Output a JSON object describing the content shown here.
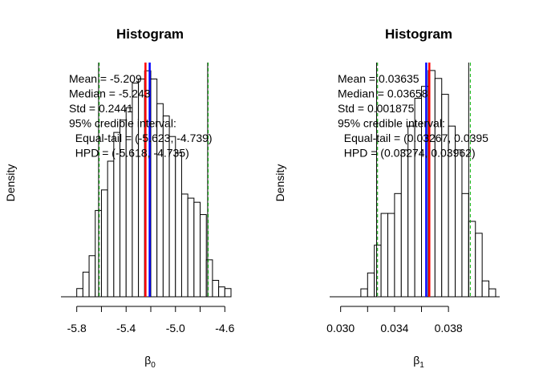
{
  "chart_data": [
    {
      "type": "bar",
      "title": "Histogram",
      "ylabel": "Density",
      "xlabel": "β",
      "xlabel_sub": "0",
      "xlim": [
        -5.85,
        -4.55
      ],
      "x_ticks": [
        -5.8,
        -5.6,
        -5.4,
        -5.2,
        -5.0,
        -4.8,
        -4.6
      ],
      "x_tick_labels": [
        "-5.8",
        "",
        "-5.4",
        "",
        "-5.0",
        "",
        "-4.6"
      ],
      "bin_width": 0.05,
      "bins_start": -5.8,
      "values": [
        0.1,
        0.3,
        0.5,
        1.05,
        1.3,
        1.65,
        2.0,
        2.15,
        2.3,
        2.6,
        2.65,
        2.75,
        2.65,
        2.35,
        2.2,
        1.95,
        1.75,
        1.25,
        1.2,
        1.15,
        1.0,
        0.45,
        0.2,
        0.12,
        0.1
      ],
      "ylim": [
        0,
        2.85
      ],
      "lines": {
        "mean": -5.209,
        "median": -5.243,
        "equal_tail": [
          -5.623,
          -4.739
        ],
        "hpd": [
          -5.618,
          -4.735
        ]
      },
      "legend_lines": [
        "Mean = -5.209",
        "Median = -5.243",
        "Std = 0.2441",
        "95% credible interval:",
        "  Equal-tail = (-5.623, -4.739)",
        "  HPD = (-5.618, -4.735)"
      ],
      "colors": {
        "mean": "#0000ff",
        "median": "#ff0000",
        "equal_tail": "#000000",
        "hpd": "#00aa00"
      }
    },
    {
      "type": "bar",
      "title": "Histogram",
      "ylabel": "Density",
      "xlabel": "β",
      "xlabel_sub": "1",
      "xlim": [
        0.0299,
        0.0418
      ],
      "x_ticks": [
        0.03,
        0.032,
        0.034,
        0.036,
        0.038
      ],
      "x_tick_labels": [
        "0.030",
        "",
        "0.034",
        "",
        "0.038"
      ],
      "bin_width": 0.0005,
      "bins_start": 0.0315,
      "values": [
        0.1,
        0.3,
        0.65,
        1.05,
        1.05,
        1.3,
        1.85,
        2.15,
        2.5,
        2.65,
        2.85,
        2.75,
        2.55,
        2.15,
        1.85,
        1.3,
        0.95,
        0.8,
        0.2,
        0.1
      ],
      "ylim": [
        0,
        2.95
      ],
      "lines": {
        "mean": 0.03635,
        "median": 0.03658,
        "equal_tail": [
          0.03267,
          0.0395
        ],
        "hpd": [
          0.03274,
          0.03962
        ]
      },
      "legend_lines": [
        "Mean = 0.03635",
        "Median = 0.03658",
        "Std = 0.001875",
        "95% credible interval:",
        "  Equal-tail = (0.03267, 0.0395",
        "  HPD = (0.03274, 0.03962)"
      ],
      "colors": {
        "mean": "#0000ff",
        "median": "#ff0000",
        "equal_tail": "#000000",
        "hpd": "#00aa00"
      }
    }
  ]
}
